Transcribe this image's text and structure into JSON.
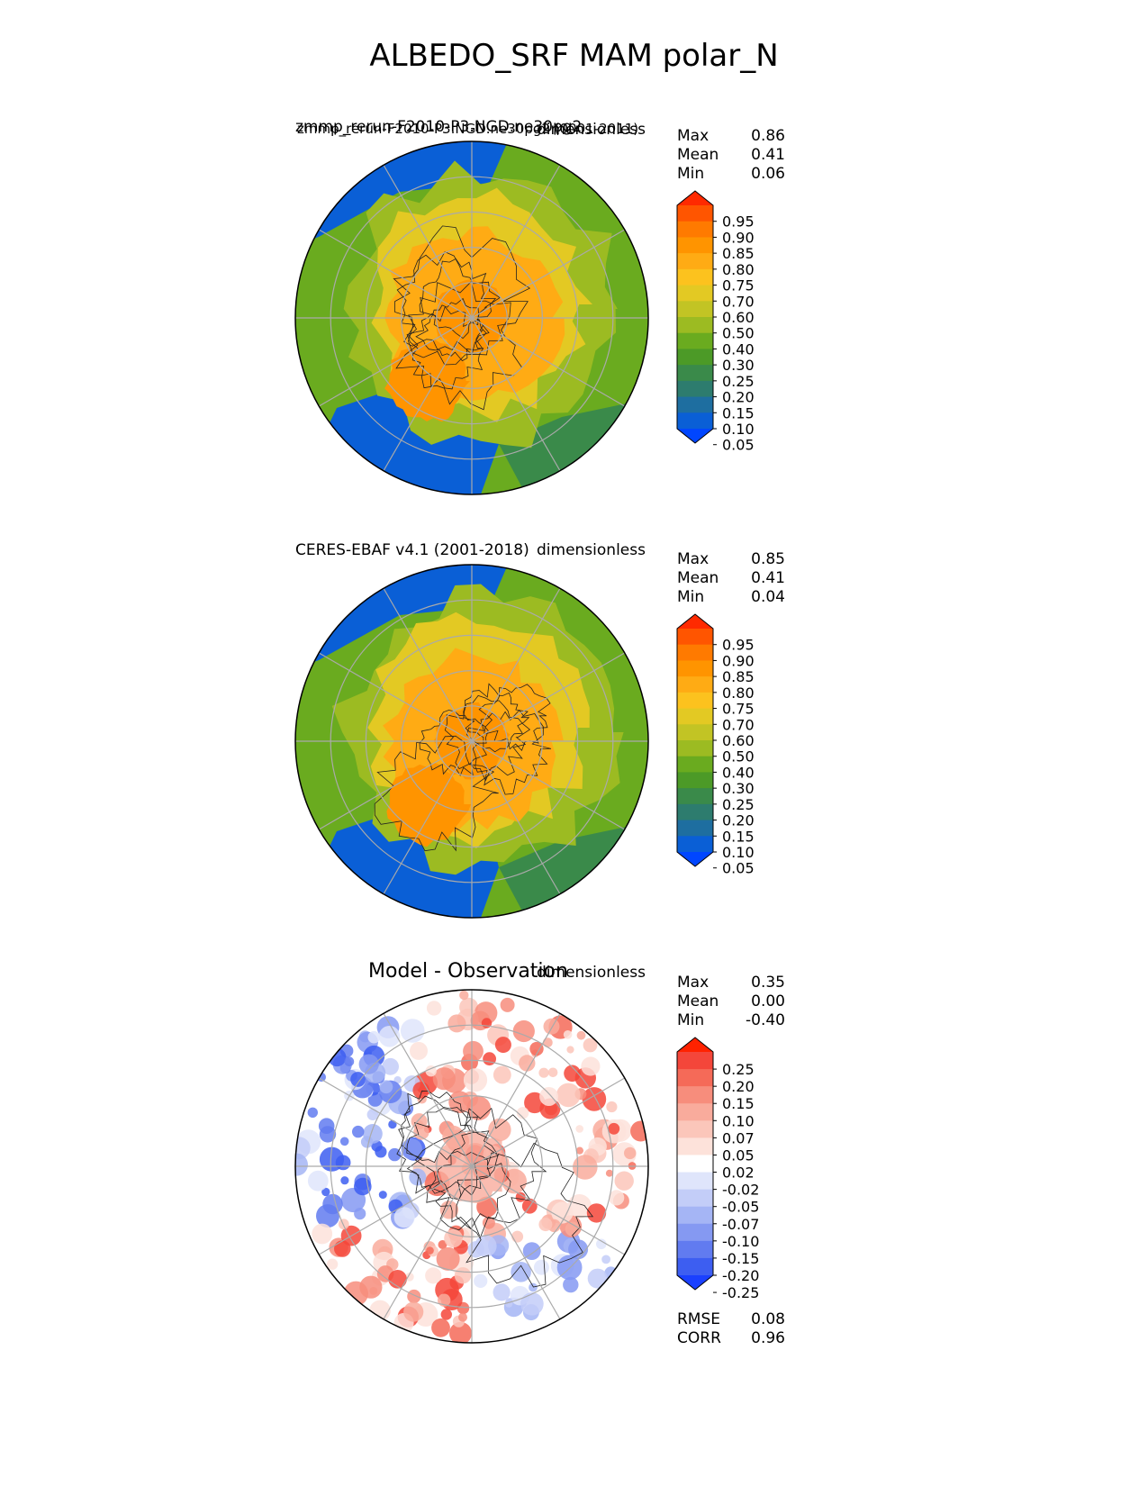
{
  "figure_title": "ALBEDO_SRF MAM polar_N",
  "panels": [
    {
      "id": "model",
      "title_left": "zmmp_rerun-F2010-P3.NGD.ne30pg2",
      "title_left_overlay": "zmmp_rerun-F2010-P3.NGD.ne30pg2 (0001-2011)",
      "title_right": "dimensionless",
      "stats": [
        [
          "Max",
          "0.86"
        ],
        [
          "Mean",
          "0.41"
        ],
        [
          "Min",
          "0.06"
        ]
      ],
      "colorbar": {
        "labels": [
          "0.95",
          "0.90",
          "0.85",
          "0.80",
          "0.75",
          "0.70",
          "0.60",
          "0.50",
          "0.40",
          "0.30",
          "0.25",
          "0.20",
          "0.15",
          "0.10",
          "0.05"
        ],
        "colors": [
          "#ff2a00",
          "#ff5500",
          "#ff7a00",
          "#ff9400",
          "#ffab14",
          "#fcc21e",
          "#e3c923",
          "#c2c424",
          "#9cbb22",
          "#6aab1f",
          "#4c9a27",
          "#3a8a4a",
          "#2d7c6e",
          "#1e6ea0",
          "#0a5fd6",
          "#0046ff"
        ]
      }
    },
    {
      "id": "obs",
      "title_left": "CERES-EBAF v4.1 (2001-2018)",
      "title_right": "dimensionless",
      "stats": [
        [
          "Max",
          "0.85"
        ],
        [
          "Mean",
          "0.41"
        ],
        [
          "Min",
          "0.04"
        ]
      ],
      "colorbar": {
        "labels": [
          "0.95",
          "0.90",
          "0.85",
          "0.80",
          "0.75",
          "0.70",
          "0.60",
          "0.50",
          "0.40",
          "0.30",
          "0.25",
          "0.20",
          "0.15",
          "0.10",
          "0.05"
        ],
        "colors": [
          "#ff2a00",
          "#ff5500",
          "#ff7a00",
          "#ff9400",
          "#ffab14",
          "#fcc21e",
          "#e3c923",
          "#c2c424",
          "#9cbb22",
          "#6aab1f",
          "#4c9a27",
          "#3a8a4a",
          "#2d7c6e",
          "#1e6ea0",
          "#0a5fd6",
          "#0046ff"
        ]
      }
    },
    {
      "id": "diff",
      "title_left": "Model - Observation",
      "title_right": "dimensionless",
      "stats": [
        [
          "Max",
          "0.35"
        ],
        [
          "Mean",
          "0.00"
        ],
        [
          "Min",
          "-0.40"
        ]
      ],
      "extra_stats": [
        [
          "RMSE",
          "0.08"
        ],
        [
          "CORR",
          "0.96"
        ]
      ],
      "colorbar": {
        "labels": [
          "0.25",
          "0.20",
          "0.15",
          "0.10",
          "0.07",
          "0.05",
          "0.02",
          "-0.02",
          "-0.05",
          "-0.07",
          "-0.10",
          "-0.15",
          "-0.20",
          "-0.25"
        ],
        "colors": [
          "#ff2200",
          "#f4463a",
          "#f56a58",
          "#f78d7c",
          "#f9ab9c",
          "#fbc6ba",
          "#fde2da",
          "#ffffff",
          "#dfe5fb",
          "#c3cdf8",
          "#a5b5f5",
          "#8599f2",
          "#617bf0",
          "#3d5ef1",
          "#1a40ff"
        ]
      }
    }
  ]
}
